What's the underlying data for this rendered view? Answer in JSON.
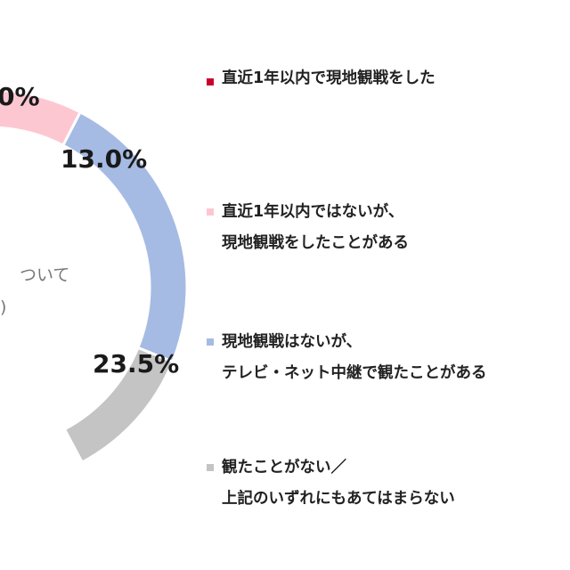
{
  "chart_data": {
    "type": "pie",
    "center_text": [
      "ついて",
      ")"
    ],
    "slices": [
      {
        "name": "直近1年以内で現地観戦をした",
        "value_label": "0%",
        "color": "#c8002d"
      },
      {
        "name": "直近1年以内ではないが、現地観戦をしたことがある",
        "value": 13.0,
        "value_label": "13.0%",
        "color": "#fdc7d2"
      },
      {
        "name": "現地観戦はないが、テレビ・ネット中継で観たことがある",
        "value": 23.5,
        "value_label": "23.5%",
        "color": "#a6bbe3"
      },
      {
        "name": "観たことがない／上記のいずれにもあてはまらない",
        "color": "#c4c4c4"
      }
    ]
  },
  "legend": [
    {
      "lines": [
        "直近1年以内で現地観戦をした"
      ],
      "color": "#c8002d"
    },
    {
      "lines": [
        "直近1年以内ではないが、",
        "現地観戦をしたことがある"
      ],
      "color": "#fdc7d2"
    },
    {
      "lines": [
        "現地観戦はないが、",
        "テレビ・ネット中継で観たことがある"
      ],
      "color": "#a6bbe3"
    },
    {
      "lines": [
        "観たことがない／",
        "上記のいずれにもあてはまらない"
      ],
      "color": "#c4c4c4"
    }
  ]
}
